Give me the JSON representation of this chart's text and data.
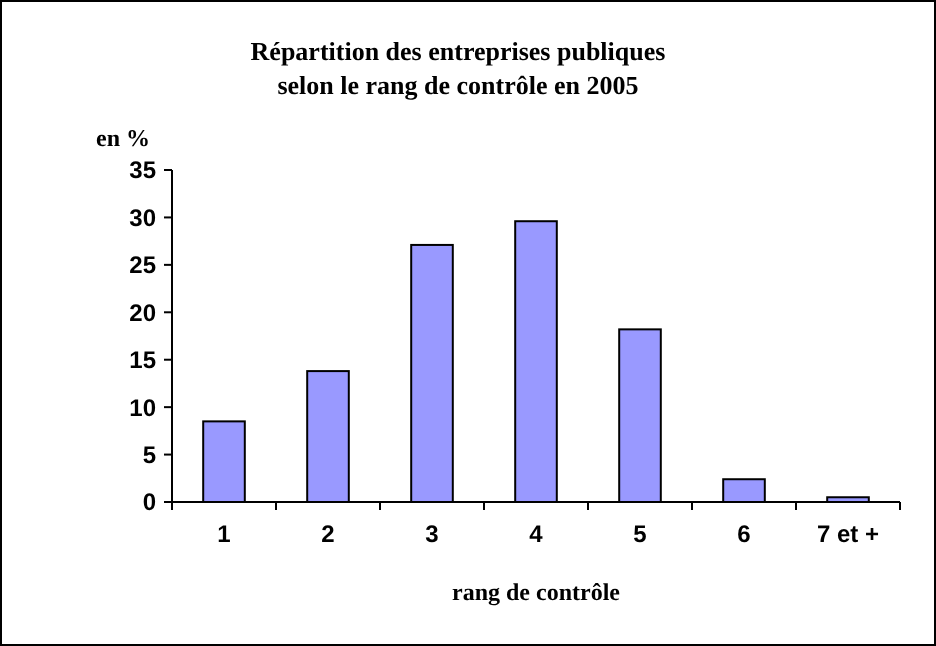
{
  "chart_data": {
    "type": "bar",
    "title": "Répartition des entreprises publiques\nselon le rang de contrôle en 2005",
    "ylabel": "en %",
    "xlabel": "rang de contrôle",
    "categories": [
      "1",
      "2",
      "3",
      "4",
      "5",
      "6",
      "7 et +"
    ],
    "values": [
      8.5,
      13.8,
      27.1,
      29.6,
      18.2,
      2.4,
      0.5
    ],
    "color": "#9999ff",
    "ylim": [
      0,
      35
    ],
    "yticks": [
      0,
      5,
      10,
      15,
      20,
      25,
      30,
      35
    ],
    "grid": false
  }
}
